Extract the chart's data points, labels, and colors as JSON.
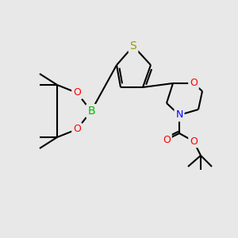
{
  "bg_color": "#e8e8e8",
  "bond_color": "#000000",
  "bond_width": 1.5,
  "atom_colors": {
    "S": "#999900",
    "B": "#00bb00",
    "O": "#ff0000",
    "N": "#0000ff",
    "C": "#000000"
  },
  "font_size": 9,
  "figsize": [
    3.0,
    3.0
  ],
  "dpi": 100
}
